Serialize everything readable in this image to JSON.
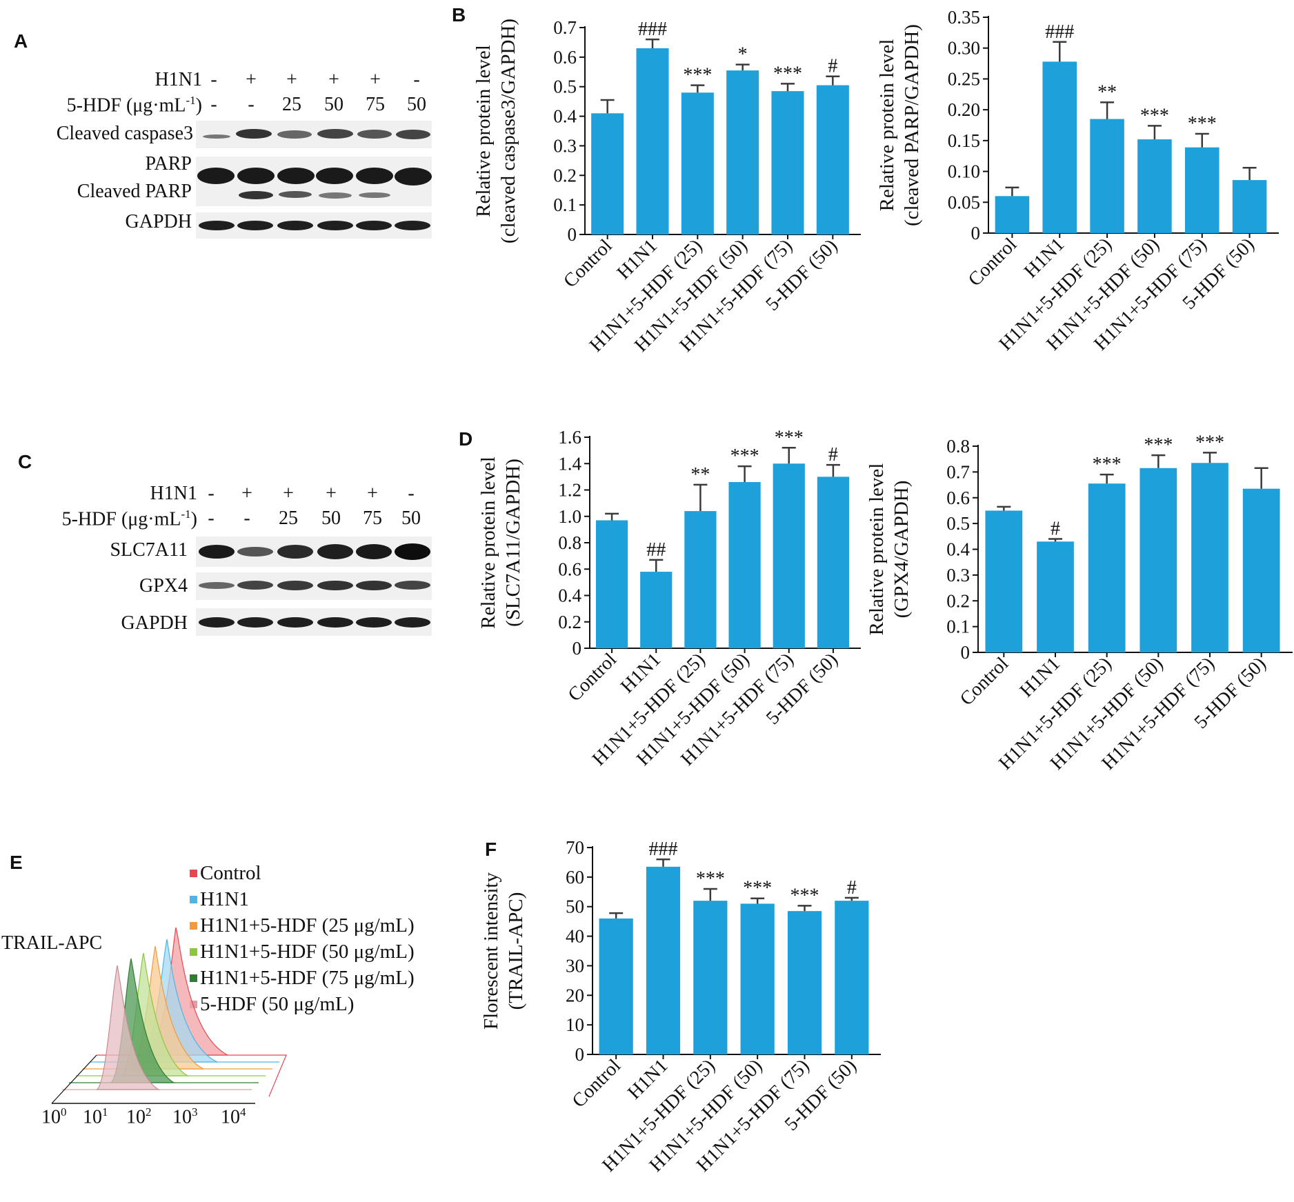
{
  "panels": {
    "A": "A",
    "B": "B",
    "C": "C",
    "D": "D",
    "E": "E",
    "F": "F"
  },
  "blot_A": {
    "treat_rows": [
      {
        "label": "H1N1",
        "signs": [
          "-",
          "+",
          "+",
          "+",
          "+",
          "-"
        ]
      },
      {
        "label": "5-HDF (μg·mL",
        "sup": "-1",
        "label_end": ")",
        "signs": [
          "-",
          "-",
          "25",
          "50",
          "75",
          "50"
        ]
      }
    ],
    "rows": [
      "Cleaved caspase3",
      "PARP",
      "Cleaved PARP",
      "GAPDH"
    ]
  },
  "blot_C": {
    "treat_rows": [
      {
        "label": "H1N1",
        "signs": [
          "-",
          "+",
          "+",
          "+",
          "+",
          "-"
        ]
      },
      {
        "label": "5-HDF (μg·mL",
        "sup": "-1",
        "label_end": ")",
        "signs": [
          "-",
          "-",
          "25",
          "50",
          "75",
          "50"
        ]
      }
    ],
    "rows": [
      "SLC7A11",
      "GPX4",
      "GAPDH"
    ]
  },
  "flow_E": {
    "ylabel": "TRAIL-APC",
    "legend": [
      {
        "label": "Control",
        "color": "#e8474f"
      },
      {
        "label": "H1N1",
        "color": "#4cb6e6"
      },
      {
        "label": "H1N1+5-HDF (25 μg/mL)",
        "color": "#f39a3a"
      },
      {
        "label": "H1N1+5-HDF (50 μg/mL)",
        "color": "#8cc63f"
      },
      {
        "label": "H1N1+5-HDF (75 μg/mL)",
        "color": "#2e7d32"
      },
      {
        "label": "5-HDF (50 μg/mL)",
        "color": "#d9a0a8"
      }
    ],
    "xticks": [
      {
        "base": "10",
        "exp": "0"
      },
      {
        "base": "10",
        "exp": "1"
      },
      {
        "base": "10",
        "exp": "2"
      },
      {
        "base": "10",
        "exp": "3"
      },
      {
        "base": "10",
        "exp": "4"
      }
    ]
  },
  "chart_data": [
    {
      "id": "B1",
      "type": "bar",
      "categories": [
        "Control",
        "H1N1",
        "H1N1+5-HDF (25)",
        "H1N1+5-HDF (50)",
        "H1N1+5-HDF (75)",
        "5-HDF (50)"
      ],
      "values": [
        0.41,
        0.63,
        0.48,
        0.555,
        0.485,
        0.505
      ],
      "errors": [
        0.045,
        0.03,
        0.025,
        0.02,
        0.025,
        0.03
      ],
      "annotations": [
        "",
        "###",
        "***",
        "*",
        "***",
        "#"
      ],
      "ylabel_lines": [
        "Relative protein level",
        "(cleaved caspase3/GAPDH)"
      ],
      "ylim": [
        0,
        0.7
      ],
      "yticks": [
        "0",
        "0.1",
        "0.2",
        "0.3",
        "0.4",
        "0.5",
        "0.6",
        "0.7"
      ],
      "color": "#1ea1db"
    },
    {
      "id": "B2",
      "type": "bar",
      "categories": [
        "Control",
        "H1N1",
        "H1N1+5-HDF (25)",
        "H1N1+5-HDF (50)",
        "H1N1+5-HDF (75)",
        "5-HDF (50)"
      ],
      "values": [
        0.06,
        0.278,
        0.185,
        0.152,
        0.139,
        0.086
      ],
      "errors": [
        0.014,
        0.032,
        0.027,
        0.022,
        0.022,
        0.02
      ],
      "annotations": [
        "",
        "###",
        "**",
        "***",
        "***",
        ""
      ],
      "ylabel_lines": [
        "Relative protein level",
        "(cleaved PARP/GAPDH)"
      ],
      "ylim": [
        0,
        0.35
      ],
      "yticks": [
        "0",
        "0.05",
        "0.10",
        "0.15",
        "0.20",
        "0.25",
        "0.30",
        "0.35"
      ],
      "color": "#1ea1db"
    },
    {
      "id": "D1",
      "type": "bar",
      "categories": [
        "Control",
        "H1N1",
        "H1N1+5-HDF (25)",
        "H1N1+5-HDF (50)",
        "H1N1+5-HDF (75)",
        "5-HDF (50)"
      ],
      "values": [
        0.97,
        0.58,
        1.04,
        1.26,
        1.4,
        1.3
      ],
      "errors": [
        0.05,
        0.09,
        0.2,
        0.12,
        0.12,
        0.09
      ],
      "annotations": [
        "",
        "##",
        "**",
        "***",
        "***",
        "#"
      ],
      "ylabel_lines": [
        "Relative protein level",
        "(SLC7A11/GAPDH)"
      ],
      "ylim": [
        0,
        1.6
      ],
      "yticks": [
        "0",
        "0.2",
        "0.4",
        "0.6",
        "0.8",
        "1.0",
        "1.2",
        "1.4",
        "1.6"
      ],
      "color": "#1ea1db"
    },
    {
      "id": "D2",
      "type": "bar",
      "categories": [
        "Control",
        "H1N1",
        "H1N1+5-HDF (25)",
        "H1N1+5-HDF (50)",
        "H1N1+5-HDF (75)",
        "5-HDF (50)"
      ],
      "values": [
        0.55,
        0.43,
        0.655,
        0.715,
        0.735,
        0.635
      ],
      "errors": [
        0.015,
        0.01,
        0.035,
        0.05,
        0.04,
        0.08
      ],
      "annotations": [
        "",
        "#",
        "***",
        "***",
        "***",
        ""
      ],
      "ylabel_lines": [
        "Relative protein level",
        "(GPX4/GAPDH)"
      ],
      "ylim": [
        0,
        0.8
      ],
      "yticks": [
        "0",
        "0.1",
        "0.2",
        "0.3",
        "0.4",
        "0.5",
        "0.6",
        "0.7",
        "0.8"
      ],
      "color": "#1ea1db"
    },
    {
      "id": "F",
      "type": "bar",
      "categories": [
        "Control",
        "H1N1",
        "H1N1+5-HDF (25)",
        "H1N1+5-HDF (50)",
        "H1N1+5-HDF (75)",
        "5-HDF (50)"
      ],
      "values": [
        46,
        63.5,
        52,
        51,
        48.5,
        52
      ],
      "errors": [
        1.8,
        2.5,
        4,
        1.8,
        1.8,
        1
      ],
      "annotations": [
        "",
        "###",
        "***",
        "***",
        "***",
        "#"
      ],
      "ylabel_lines": [
        "Florescent intensity",
        "(TRAIL-APC)"
      ],
      "ylim": [
        0,
        70
      ],
      "yticks": [
        "0",
        "10",
        "20",
        "30",
        "40",
        "50",
        "60",
        "70"
      ],
      "color": "#1ea1db"
    }
  ]
}
